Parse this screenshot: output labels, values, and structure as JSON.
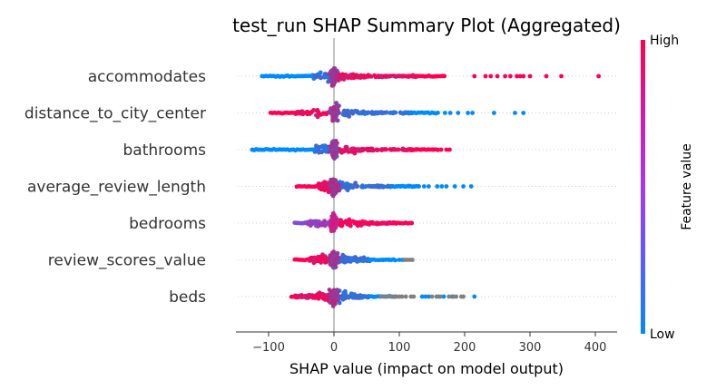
{
  "chart_data": {
    "type": "scatter",
    "title": "test_run SHAP Summary Plot (Aggregated)",
    "xlabel": "SHAP value (impact on model output)",
    "xlim": [
      -150,
      430
    ],
    "xticks": [
      -100,
      0,
      100,
      200,
      300,
      400
    ],
    "xtick_labels": [
      "−100",
      "0",
      "100",
      "200",
      "300",
      "400"
    ],
    "features": [
      {
        "name": "accommodates",
        "min": -110,
        "max": 405,
        "core": [
          -35,
          130
        ],
        "low_side": "negative",
        "low_color": "#008bfb",
        "high_color": "#ff0052",
        "outliers_high": [
          215,
          232,
          240,
          250,
          262,
          270,
          280,
          285,
          290,
          300,
          325,
          348,
          405
        ]
      },
      {
        "name": "distance_to_city_center",
        "min": -97,
        "max": 290,
        "core": [
          -60,
          120
        ],
        "low_side": "positive",
        "low_color": "#008bfb",
        "high_color": "#ff0052",
        "outliers_low": [
          170,
          178,
          190,
          205,
          212,
          245,
          277,
          290
        ]
      },
      {
        "name": "bathrooms",
        "min": -125,
        "max": 177,
        "core": [
          -30,
          120
        ],
        "low_side": "negative",
        "low_color": "#008bfb",
        "high_color": "#ff0052",
        "outliers_high": [
          126,
          133,
          152,
          164,
          172,
          177
        ],
        "outliers_low": [
          -125
        ]
      },
      {
        "name": "average_review_length",
        "min": -57,
        "max": 210,
        "core": [
          -25,
          90
        ],
        "low_side": "positive",
        "low_color": "#008bfb",
        "high_color": "#ff0052",
        "outliers_low": [
          95,
          102,
          108,
          115,
          122,
          130,
          138,
          145,
          158,
          165,
          172,
          185,
          198,
          210
        ]
      },
      {
        "name": "bedrooms",
        "min": -60,
        "max": 119,
        "core": [
          -45,
          95
        ],
        "low_side": "negative",
        "low_color": "#7d4cd6",
        "high_color": "#ff0052",
        "outliers_high": [
          119
        ]
      },
      {
        "name": "review_scores_value",
        "min": -60,
        "max": 120,
        "core": [
          -40,
          55
        ],
        "low_side": "positive",
        "low_color": "#008bfb",
        "high_color": "#ff0052",
        "outliers_low": [
          75,
          84,
          100,
          105
        ],
        "outliers_grey": [
          108,
          112,
          116,
          120
        ]
      },
      {
        "name": "beds",
        "min": -65,
        "max": 215,
        "core": [
          -60,
          55
        ],
        "low_side": "positive",
        "low_color": "#008bfb",
        "high_color": "#ff0052",
        "outliers_grey": [
          72,
          78,
          82,
          87,
          93,
          96,
          100,
          104,
          110,
          118,
          122,
          150,
          157,
          163,
          176,
          183,
          187,
          195,
          198
        ],
        "outliers_low": [
          135,
          140,
          145,
          160,
          168,
          181,
          215
        ]
      }
    ],
    "colorbar": {
      "high": "High",
      "low": "Low",
      "label": "Feature value",
      "colors": [
        "#ff0052",
        "#008bfb"
      ]
    },
    "grid": "horizontal dotted per feature",
    "zero_line": true
  }
}
